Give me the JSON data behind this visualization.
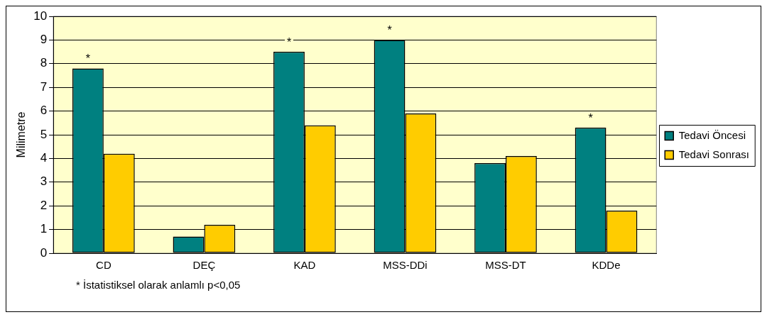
{
  "chart_data": {
    "type": "bar",
    "ylabel": "Milimetre",
    "categories": [
      "CD",
      "DEÇ",
      "KAD",
      "MSS-DDi",
      "MSS-DT",
      "KDDe"
    ],
    "series": [
      {
        "name": "Tedavi Öncesi",
        "color": "#008080",
        "values": [
          7.8,
          0.7,
          8.5,
          9.0,
          3.8,
          5.3
        ]
      },
      {
        "name": "Tedavi Sonrası",
        "color": "#ffcc00",
        "values": [
          4.2,
          1.2,
          5.4,
          5.9,
          4.1,
          1.8
        ]
      }
    ],
    "ylim": [
      0,
      10
    ],
    "yticks": [
      0,
      1,
      2,
      3,
      4,
      5,
      6,
      7,
      8,
      9,
      10
    ],
    "grid": "y",
    "legend": "right",
    "annotations": [
      {
        "text": "*",
        "x": "CD",
        "y": 7.8
      },
      {
        "text": "*",
        "x": "KAD",
        "y": 8.5
      },
      {
        "text": "*",
        "x": "MSS-DDi",
        "y": 9.0
      },
      {
        "text": "*",
        "x": "KDDe",
        "y": 5.3
      },
      "* İstatistiksel olarak anlamlı p<0,05"
    ]
  }
}
